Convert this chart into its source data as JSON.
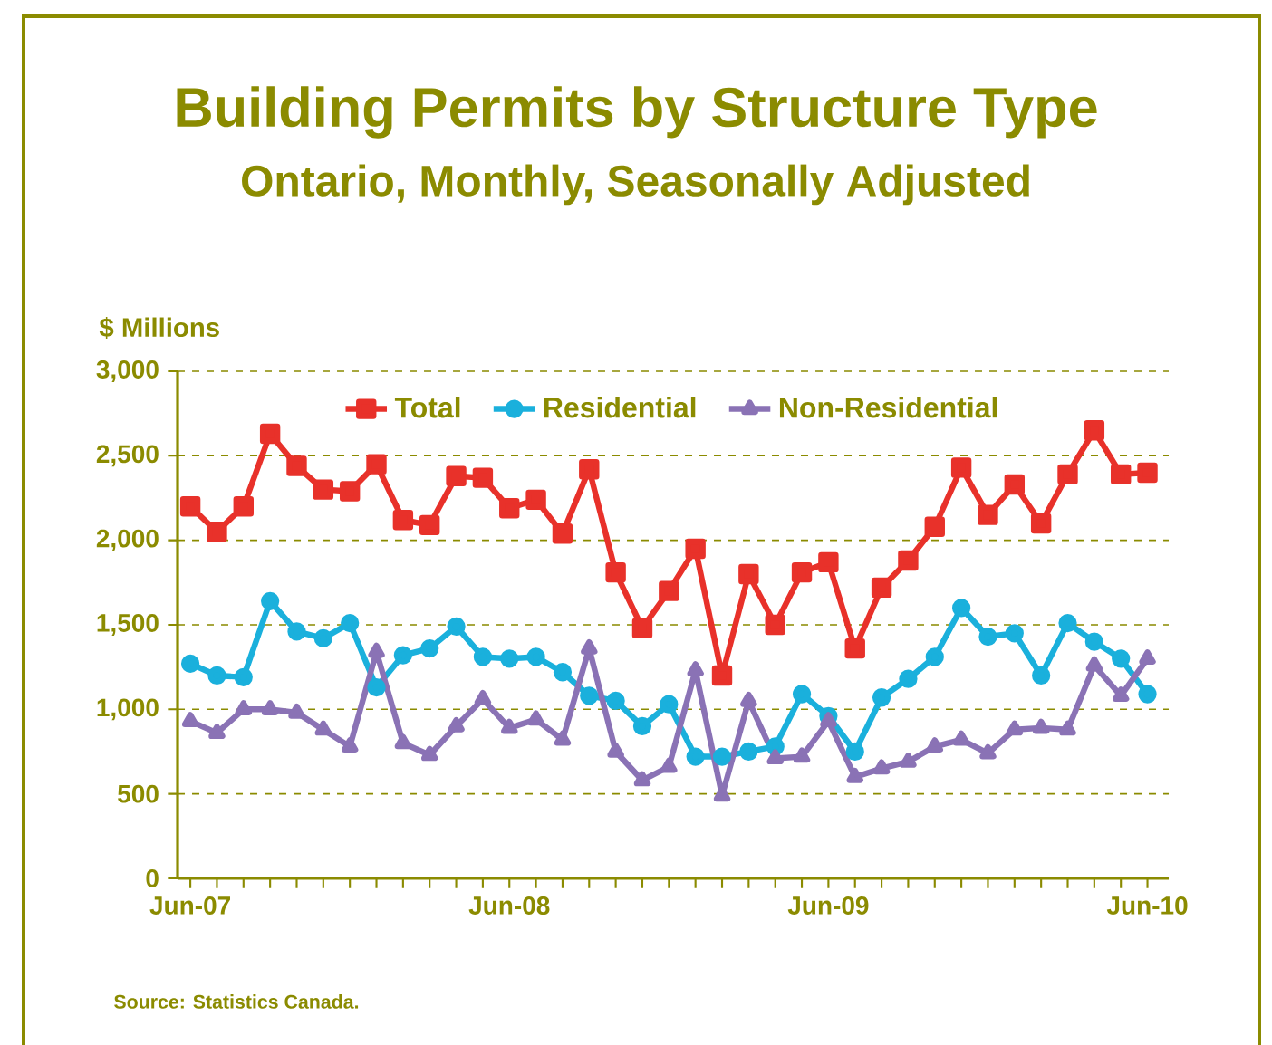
{
  "chart_data": {
    "type": "line",
    "title": "Building Permits by Structure Type",
    "subtitle": "Ontario, Monthly, Seasonally Adjusted",
    "ylabel": "$ Millions",
    "annotations": [
      "Source: Statistics Canada."
    ],
    "categories": [
      "Jun-07",
      null,
      null,
      null,
      null,
      null,
      null,
      null,
      null,
      null,
      null,
      null,
      "Jun-08",
      null,
      null,
      null,
      null,
      null,
      null,
      null,
      null,
      null,
      null,
      null,
      "Jun-09",
      null,
      null,
      null,
      null,
      null,
      null,
      null,
      null,
      null,
      null,
      null,
      "Jun-10"
    ],
    "series": [
      {
        "name": "Total",
        "color": "#e8312a",
        "marker": "square",
        "values": [
          2200,
          2050,
          2200,
          2630,
          2440,
          2300,
          2290,
          2450,
          2120,
          2090,
          2380,
          2370,
          2190,
          2240,
          2040,
          2420,
          1810,
          1480,
          1700,
          1950,
          1200,
          1800,
          1500,
          1810,
          1870,
          1360,
          1720,
          1880,
          2080,
          2430,
          2150,
          2330,
          2100,
          2390,
          2650,
          2390,
          2400
        ]
      },
      {
        "name": "Residential",
        "color": "#1ab0dc",
        "marker": "circle",
        "values": [
          1270,
          1200,
          1190,
          1640,
          1460,
          1420,
          1510,
          1130,
          1320,
          1360,
          1490,
          1310,
          1300,
          1310,
          1220,
          1080,
          1050,
          900,
          1030,
          720,
          720,
          750,
          780,
          1090,
          960,
          750,
          1070,
          1180,
          1310,
          1600,
          1430,
          1450,
          1200,
          1510,
          1400,
          1300,
          1090
        ]
      },
      {
        "name": "Non-Residential",
        "color": "#8a72b5",
        "marker": "triangle",
        "values": [
          930,
          860,
          1000,
          1000,
          980,
          880,
          780,
          1340,
          800,
          730,
          900,
          1060,
          890,
          940,
          820,
          1360,
          750,
          580,
          660,
          1230,
          490,
          1050,
          710,
          720,
          930,
          600,
          650,
          690,
          780,
          820,
          740,
          880,
          890,
          880,
          1260,
          1080,
          1300
        ]
      }
    ],
    "ylim": [
      0,
      3000
    ],
    "yticks": [
      0,
      {
        "value": 500,
        "label": "500"
      },
      {
        "value": 1000,
        "label": "1,000"
      },
      {
        "value": 1500,
        "label": "1,500"
      },
      {
        "value": 2000,
        "label": "2,000"
      },
      {
        "value": 2500,
        "label": "2,500"
      },
      {
        "value": 3000,
        "label": "3,000"
      }
    ],
    "grid": "y",
    "legend": "top",
    "line_style": "solid"
  }
}
